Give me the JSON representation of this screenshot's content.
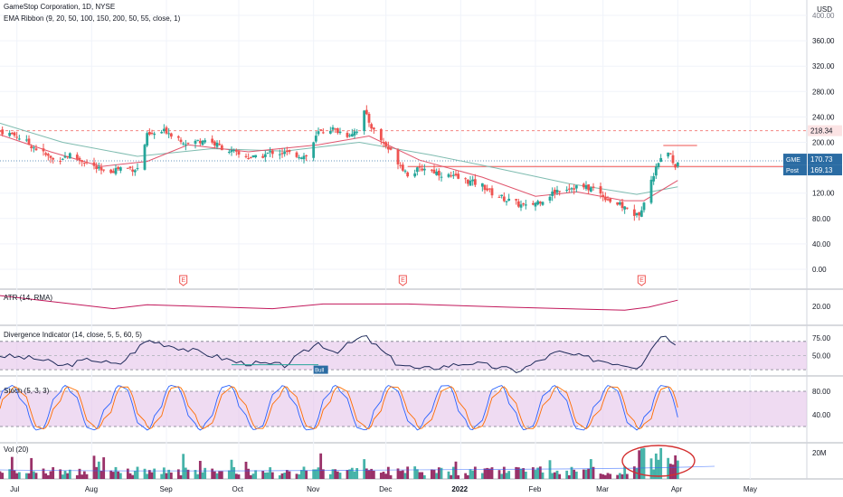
{
  "header": {
    "symbol_line": "GameStop Corporation, 1D, NYSE",
    "indicator_line": "EMA Ribbon (9, 20, 50, 100, 150, 200, 50, 55, close, 1)",
    "currency": "USD"
  },
  "panes": {
    "atr_label": "ATR (14, RMA)",
    "div_label": "Divergence Indicator (14, close, 5, 5, 60, 5)",
    "div_badge": "Bull",
    "stoch_label": "Stoch (5, 3, 3)",
    "vol_label": "Vol (20)"
  },
  "price_badges": {
    "dashed_level": "218.34",
    "gme_label": "GME",
    "gme_value": "170.73",
    "post_label": "Post",
    "post_value": "169.13"
  },
  "earnings_marker": "E",
  "colors": {
    "up": "#26a69a",
    "down": "#ef5350",
    "volume_down": "#880e4f",
    "ema_red": "#e0546c",
    "ema_teal": "#7fbcb0",
    "atr_line": "#c2185b",
    "osc_band": "#e1bee7",
    "osc_line": "#1e2a5a",
    "stoch_k": "#2962ff",
    "stoch_d": "#ff6d00",
    "annotation": "#d32f2f",
    "badge_blue": "#2b6ca3"
  },
  "chart_data": [
    {
      "type": "candlestick",
      "pane": "price",
      "title": "GameStop Corporation, 1D, NYSE",
      "y_ticks": [
        "400.00",
        "360.00",
        "320.00",
        "280.00",
        "240.00",
        "200.00",
        "160.00",
        "120.00",
        "80.00",
        "40.00",
        "0.00"
      ],
      "ylim": [
        0,
        400
      ],
      "x_ticks": [
        "Jul",
        "Aug",
        "Sep",
        "Oct",
        "Nov",
        "Dec",
        "2022",
        "Feb",
        "Mar",
        "Apr",
        "May"
      ],
      "close_path": [
        [
          "2021-06-24",
          218
        ],
        [
          "2021-07-01",
          210
        ],
        [
          "2021-07-09",
          190
        ],
        [
          "2021-07-16",
          172
        ],
        [
          "2021-07-23",
          180
        ],
        [
          "2021-07-30",
          168
        ],
        [
          "2021-08-06",
          152
        ],
        [
          "2021-08-13",
          160
        ],
        [
          "2021-08-20",
          158
        ],
        [
          "2021-08-24",
          210
        ],
        [
          "2021-09-01",
          218
        ],
        [
          "2021-09-10",
          198
        ],
        [
          "2021-09-17",
          205
        ],
        [
          "2021-09-24",
          192
        ],
        [
          "2021-10-01",
          180
        ],
        [
          "2021-10-08",
          175
        ],
        [
          "2021-10-15",
          185
        ],
        [
          "2021-10-22",
          182
        ],
        [
          "2021-10-29",
          178
        ],
        [
          "2021-11-03",
          215
        ],
        [
          "2021-11-08",
          222
        ],
        [
          "2021-11-15",
          212
        ],
        [
          "2021-11-19",
          220
        ],
        [
          "2021-11-22",
          247
        ],
        [
          "2021-11-26",
          218
        ],
        [
          "2021-12-03",
          185
        ],
        [
          "2021-12-10",
          150
        ],
        [
          "2021-12-17",
          160
        ],
        [
          "2021-12-24",
          150
        ],
        [
          "2022-01-03",
          140
        ],
        [
          "2022-01-10",
          132
        ],
        [
          "2022-01-14",
          120
        ],
        [
          "2022-01-21",
          108
        ],
        [
          "2022-01-28",
          98
        ],
        [
          "2022-02-04",
          110
        ],
        [
          "2022-02-11",
          127
        ],
        [
          "2022-02-18",
          130
        ],
        [
          "2022-02-25",
          127
        ],
        [
          "2022-03-04",
          108
        ],
        [
          "2022-03-11",
          95
        ],
        [
          "2022-03-16",
          82
        ],
        [
          "2022-03-18",
          110
        ],
        [
          "2022-03-24",
          168
        ],
        [
          "2022-03-28",
          185
        ],
        [
          "2022-03-31",
          162
        ],
        [
          "2022-04-01",
          170.73
        ]
      ],
      "ema_fast_path": [
        [
          "2021-06-24",
          212
        ],
        [
          "2021-07-15",
          185
        ],
        [
          "2021-08-05",
          162
        ],
        [
          "2021-08-24",
          170
        ],
        [
          "2021-09-10",
          196
        ],
        [
          "2021-10-05",
          185
        ],
        [
          "2021-11-03",
          196
        ],
        [
          "2021-11-24",
          210
        ],
        [
          "2021-12-15",
          172
        ],
        [
          "2022-01-10",
          145
        ],
        [
          "2022-02-01",
          115
        ],
        [
          "2022-02-18",
          122
        ],
        [
          "2022-03-10",
          108
        ],
        [
          "2022-03-18",
          108
        ],
        [
          "2022-04-01",
          140
        ]
      ],
      "ema_slow_path": [
        [
          "2021-06-24",
          230
        ],
        [
          "2021-07-20",
          200
        ],
        [
          "2021-08-20",
          178
        ],
        [
          "2021-09-20",
          190
        ],
        [
          "2021-10-20",
          186
        ],
        [
          "2021-11-20",
          200
        ],
        [
          "2021-12-20",
          180
        ],
        [
          "2022-01-15",
          160
        ],
        [
          "2022-02-15",
          135
        ],
        [
          "2022-03-15",
          118
        ],
        [
          "2022-04-01",
          130
        ]
      ],
      "earnings_dates": [
        "2021-09-08",
        "2021-12-08",
        "2022-03-17"
      ],
      "horizontal_levels": [
        218.34,
        170.73,
        162,
        195
      ]
    },
    {
      "type": "line",
      "pane": "atr",
      "title": "ATR (14, RMA)",
      "y_ticks": [
        "20.00"
      ],
      "path": [
        [
          "2021-06-24",
          34
        ],
        [
          "2021-08-10",
          17
        ],
        [
          "2021-08-24",
          22
        ],
        [
          "2021-10-15",
          17
        ],
        [
          "2021-11-05",
          23
        ],
        [
          "2021-12-10",
          23
        ],
        [
          "2022-01-20",
          19
        ],
        [
          "2022-03-10",
          15
        ],
        [
          "2022-03-20",
          19
        ],
        [
          "2022-04-01",
          28
        ]
      ]
    },
    {
      "type": "line",
      "pane": "divergence",
      "title": "Divergence Indicator (14, close, 5, 5, 60, 5)",
      "y_ticks": [
        "75.00",
        "50.00"
      ],
      "band": [
        30,
        70
      ],
      "path": [
        [
          "2021-06-24",
          50
        ],
        [
          "2021-07-10",
          45
        ],
        [
          "2021-07-20",
          35
        ],
        [
          "2021-08-01",
          45
        ],
        [
          "2021-08-12",
          36
        ],
        [
          "2021-08-24",
          72
        ],
        [
          "2021-09-08",
          60
        ],
        [
          "2021-09-20",
          50
        ],
        [
          "2021-10-01",
          40
        ],
        [
          "2021-10-20",
          36
        ],
        [
          "2021-11-03",
          68
        ],
        [
          "2021-11-10",
          55
        ],
        [
          "2021-11-22",
          78
        ],
        [
          "2021-12-05",
          40
        ],
        [
          "2021-12-15",
          30
        ],
        [
          "2022-01-05",
          40
        ],
        [
          "2022-01-25",
          28
        ],
        [
          "2022-02-10",
          55
        ],
        [
          "2022-02-25",
          45
        ],
        [
          "2022-03-16",
          34
        ],
        [
          "2022-03-25",
          80
        ],
        [
          "2022-04-01",
          67
        ]
      ]
    },
    {
      "type": "line",
      "pane": "stoch",
      "title": "Stoch (5, 3, 3)",
      "y_ticks": [
        "80.00",
        "40.00"
      ],
      "band": [
        20,
        80
      ],
      "series": [
        {
          "values_note": "oscillates between ~15 and ~92",
          "path_k": true
        },
        {
          "values_note": "smoothed",
          "path_d": true
        }
      ]
    },
    {
      "type": "bar",
      "pane": "volume",
      "title": "Vol (20)",
      "y_ticks": [
        "20M"
      ]
    }
  ]
}
